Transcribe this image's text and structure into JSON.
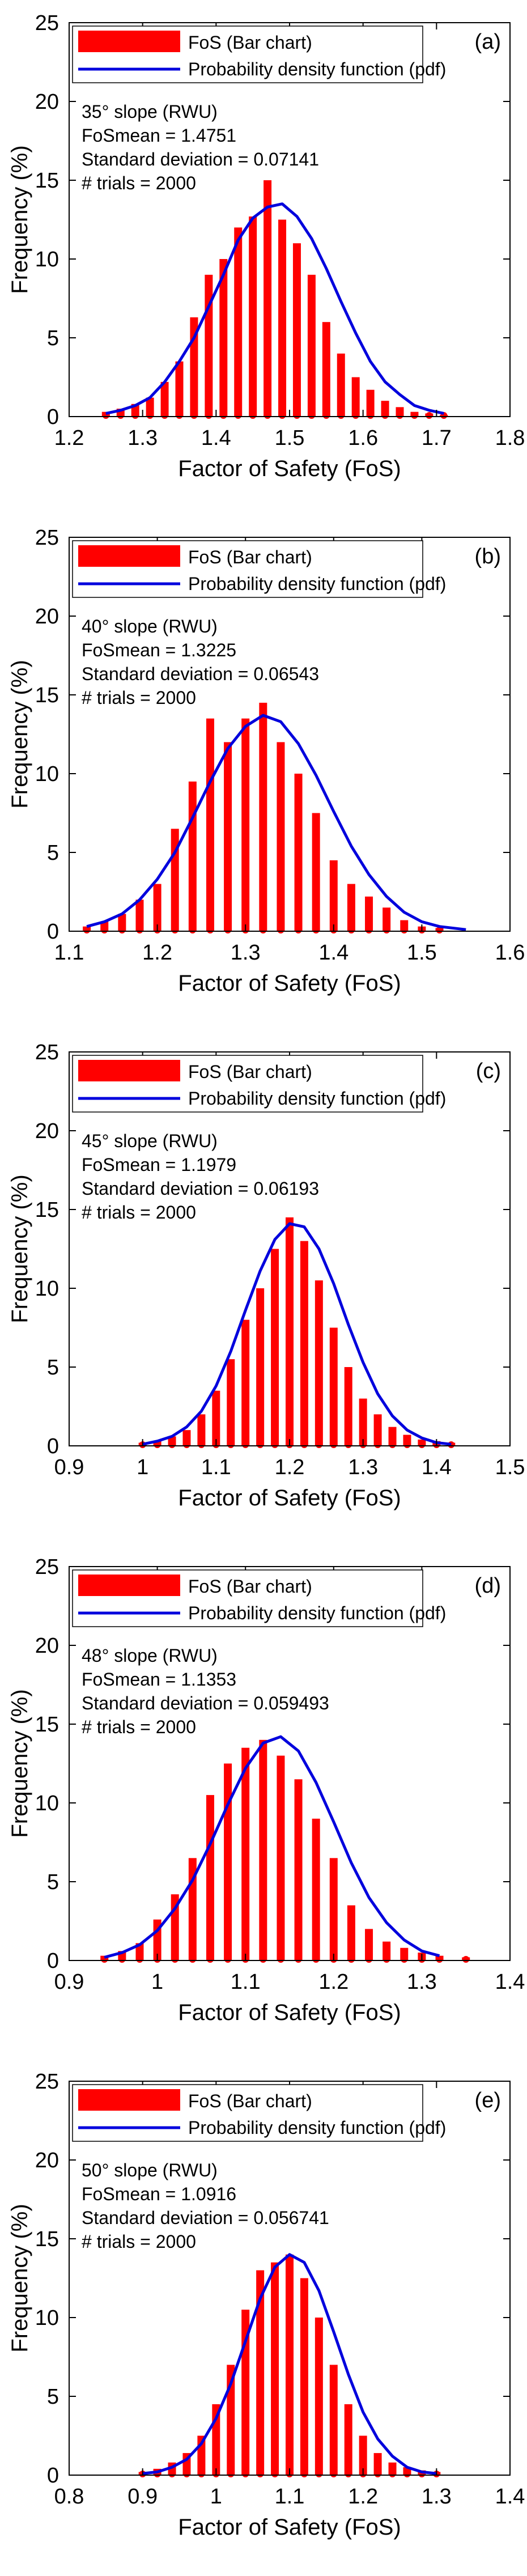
{
  "chart_data": [
    {
      "type": "bar",
      "panel_label": "(a)",
      "legend": [
        "FoS (Bar chart)",
        "Probability density function (pdf)"
      ],
      "annotations": [
        "35° slope (RWU)",
        "FoSmean = 1.4751",
        "Standard deviation = 0.07141",
        "# trials = 2000"
      ],
      "xlabel": "Factor of Safety (FoS)",
      "ylabel": "Frequency (%)",
      "xlim": [
        1.2,
        1.8
      ],
      "ylim": [
        0,
        25
      ],
      "xticks": [
        "1.2",
        "1.3",
        "1.4",
        "1.5",
        "1.6",
        "1.7",
        "1.8"
      ],
      "yticks": [
        "0",
        "5",
        "10",
        "15",
        "20",
        "25"
      ],
      "x": [
        1.25,
        1.27,
        1.29,
        1.31,
        1.33,
        1.35,
        1.37,
        1.39,
        1.41,
        1.43,
        1.45,
        1.47,
        1.49,
        1.51,
        1.53,
        1.55,
        1.57,
        1.59,
        1.61,
        1.63,
        1.65,
        1.67,
        1.69,
        1.71
      ],
      "values": [
        0.3,
        0.5,
        0.8,
        1.2,
        2.2,
        3.5,
        6.3,
        9.0,
        10.0,
        12.0,
        12.7,
        15.0,
        12.5,
        11.0,
        9.0,
        6.0,
        4.0,
        2.5,
        1.7,
        1.0,
        0.6,
        0.3,
        0.2,
        0.1
      ],
      "pdf": {
        "x": [
          1.25,
          1.27,
          1.29,
          1.31,
          1.33,
          1.35,
          1.37,
          1.39,
          1.41,
          1.43,
          1.45,
          1.47,
          1.49,
          1.51,
          1.53,
          1.55,
          1.57,
          1.59,
          1.61,
          1.63,
          1.65,
          1.67,
          1.69,
          1.71
        ],
        "values": [
          0.2,
          0.4,
          0.7,
          1.2,
          2.2,
          3.5,
          5.0,
          7.0,
          9.0,
          11.2,
          12.6,
          13.3,
          13.5,
          12.7,
          11.3,
          9.4,
          7.3,
          5.3,
          3.5,
          2.2,
          1.4,
          0.7,
          0.4,
          0.2
        ]
      }
    },
    {
      "type": "bar",
      "panel_label": "(b)",
      "legend": [
        "FoS (Bar chart)",
        "Probability density function (pdf)"
      ],
      "annotations": [
        "40° slope (RWU)",
        "FoSmean = 1.3225",
        "Standard deviation = 0.06543",
        "# trials = 2000"
      ],
      "xlabel": "Factor of Safety (FoS)",
      "ylabel": "Frequency (%)",
      "xlim": [
        1.1,
        1.6
      ],
      "ylim": [
        0,
        25
      ],
      "xticks": [
        "1.1",
        "1.2",
        "1.3",
        "1.4",
        "1.5",
        "1.6"
      ],
      "yticks": [
        "0",
        "5",
        "10",
        "15",
        "20",
        "25"
      ],
      "x": [
        1.12,
        1.14,
        1.16,
        1.18,
        1.2,
        1.22,
        1.24,
        1.26,
        1.28,
        1.3,
        1.32,
        1.34,
        1.36,
        1.38,
        1.4,
        1.42,
        1.44,
        1.46,
        1.48,
        1.5,
        1.52
      ],
      "values": [
        0.3,
        0.6,
        1.1,
        2.0,
        3.0,
        6.5,
        9.5,
        13.5,
        12.0,
        13.5,
        14.5,
        12.0,
        10.0,
        7.5,
        4.5,
        3.0,
        2.2,
        1.5,
        0.7,
        0.3,
        0.2
      ],
      "pdf": {
        "x": [
          1.12,
          1.14,
          1.16,
          1.18,
          1.2,
          1.22,
          1.24,
          1.26,
          1.28,
          1.3,
          1.32,
          1.34,
          1.36,
          1.38,
          1.4,
          1.42,
          1.44,
          1.46,
          1.48,
          1.5,
          1.52,
          1.55
        ],
        "values": [
          0.3,
          0.6,
          1.1,
          2.0,
          3.3,
          5.0,
          7.2,
          9.5,
          11.6,
          13.0,
          13.7,
          13.3,
          11.9,
          9.9,
          7.6,
          5.4,
          3.6,
          2.2,
          1.2,
          0.6,
          0.3,
          0.1
        ]
      }
    },
    {
      "type": "bar",
      "panel_label": "(c)",
      "legend": [
        "FoS (Bar chart)",
        "Probability density function (pdf)"
      ],
      "annotations": [
        "45° slope (RWU)",
        "FoSmean = 1.1979",
        "Standard deviation = 0.06193",
        "# trials = 2000"
      ],
      "xlabel": "Factor of Safety (FoS)",
      "ylabel": "Frequency (%)",
      "xlim": [
        0.9,
        1.5
      ],
      "ylim": [
        0,
        25
      ],
      "xticks": [
        "0.9",
        "1",
        "1.1",
        "1.2",
        "1.3",
        "1.4",
        "1.5"
      ],
      "yticks": [
        "0",
        "5",
        "10",
        "15",
        "20",
        "25"
      ],
      "x": [
        1.0,
        1.02,
        1.04,
        1.06,
        1.08,
        1.1,
        1.12,
        1.14,
        1.16,
        1.18,
        1.2,
        1.22,
        1.24,
        1.26,
        1.28,
        1.3,
        1.32,
        1.34,
        1.36,
        1.38,
        1.4,
        1.42
      ],
      "values": [
        0.2,
        0.3,
        0.6,
        1.0,
        2.0,
        3.5,
        5.5,
        8.0,
        10.0,
        12.5,
        14.5,
        13.0,
        10.5,
        7.5,
        5.0,
        3.0,
        2.0,
        1.2,
        0.7,
        0.4,
        0.3,
        0.2
      ],
      "pdf": {
        "x": [
          1.0,
          1.02,
          1.04,
          1.06,
          1.08,
          1.1,
          1.12,
          1.14,
          1.16,
          1.18,
          1.2,
          1.22,
          1.24,
          1.26,
          1.28,
          1.3,
          1.32,
          1.34,
          1.36,
          1.38,
          1.4,
          1.42
        ],
        "values": [
          0.1,
          0.3,
          0.6,
          1.2,
          2.2,
          3.8,
          6.0,
          8.6,
          11.1,
          13.1,
          14.1,
          13.9,
          12.5,
          10.3,
          7.7,
          5.3,
          3.3,
          1.9,
          1.0,
          0.5,
          0.2,
          0.1
        ]
      }
    },
    {
      "type": "bar",
      "panel_label": "(d)",
      "legend": [
        "FoS (Bar chart)",
        "Probability density function (pdf)"
      ],
      "annotations": [
        "48° slope (RWU)",
        "FoSmean = 1.1353",
        "Standard deviation = 0.059493",
        "# trials = 2000"
      ],
      "xlabel": "Factor of Safety (FoS)",
      "ylabel": "Frequency (%)",
      "xlim": [
        0.9,
        1.4
      ],
      "ylim": [
        0,
        25
      ],
      "xticks": [
        "0.9",
        "1",
        "1.1",
        "1.2",
        "1.3",
        "1.4"
      ],
      "yticks": [
        "0",
        "5",
        "10",
        "15",
        "20",
        "25"
      ],
      "x": [
        0.94,
        0.96,
        0.98,
        1.0,
        1.02,
        1.04,
        1.06,
        1.08,
        1.1,
        1.12,
        1.14,
        1.16,
        1.18,
        1.2,
        1.22,
        1.24,
        1.26,
        1.28,
        1.3,
        1.32,
        1.35
      ],
      "values": [
        0.3,
        0.6,
        1.1,
        2.6,
        4.2,
        6.5,
        10.5,
        12.5,
        13.5,
        14.0,
        13.0,
        11.5,
        9.0,
        6.5,
        3.5,
        2.0,
        1.2,
        0.8,
        0.5,
        0.3,
        0.2
      ],
      "pdf": {
        "x": [
          0.94,
          0.96,
          0.98,
          1.0,
          1.02,
          1.04,
          1.06,
          1.08,
          1.1,
          1.12,
          1.14,
          1.16,
          1.18,
          1.2,
          1.22,
          1.24,
          1.26,
          1.28,
          1.3,
          1.32
        ],
        "values": [
          0.2,
          0.5,
          1.0,
          1.9,
          3.3,
          5.1,
          7.4,
          9.9,
          12.2,
          13.8,
          14.2,
          13.3,
          11.3,
          8.8,
          6.2,
          4.0,
          2.4,
          1.3,
          0.6,
          0.3
        ]
      }
    },
    {
      "type": "bar",
      "panel_label": "(e)",
      "legend": [
        "FoS (Bar chart)",
        "Probability density function (pdf)"
      ],
      "annotations": [
        "50° slope (RWU)",
        "FoSmean = 1.0916",
        "Standard deviation = 0.056741",
        "# trials = 2000"
      ],
      "xlabel": "Factor of Safety (FoS)",
      "ylabel": "Frequency (%)",
      "xlim": [
        0.8,
        1.4
      ],
      "ylim": [
        0,
        25
      ],
      "xticks": [
        "0.8",
        "0.9",
        "1",
        "1.1",
        "1.2",
        "1.3",
        "1.4"
      ],
      "yticks": [
        "0",
        "5",
        "10",
        "15",
        "20",
        "25"
      ],
      "x": [
        0.9,
        0.92,
        0.94,
        0.96,
        0.98,
        1.0,
        1.02,
        1.04,
        1.06,
        1.08,
        1.1,
        1.12,
        1.14,
        1.16,
        1.18,
        1.2,
        1.22,
        1.24,
        1.26,
        1.28,
        1.3
      ],
      "values": [
        0.2,
        0.4,
        0.8,
        1.4,
        2.5,
        4.5,
        7.0,
        10.5,
        13.0,
        13.5,
        14.0,
        12.5,
        10.0,
        7.0,
        4.5,
        2.5,
        1.4,
        0.8,
        0.5,
        0.3,
        0.2
      ],
      "pdf": {
        "x": [
          0.9,
          0.92,
          0.94,
          0.96,
          0.98,
          1.0,
          1.02,
          1.04,
          1.06,
          1.08,
          1.1,
          1.12,
          1.14,
          1.16,
          1.18,
          1.2,
          1.22,
          1.24,
          1.26,
          1.28,
          1.3
        ],
        "values": [
          0.1,
          0.2,
          0.5,
          1.0,
          2.0,
          3.6,
          5.8,
          8.5,
          11.2,
          13.2,
          14.0,
          13.5,
          11.7,
          9.1,
          6.4,
          4.0,
          2.3,
          1.2,
          0.5,
          0.2,
          0.1
        ]
      }
    }
  ]
}
